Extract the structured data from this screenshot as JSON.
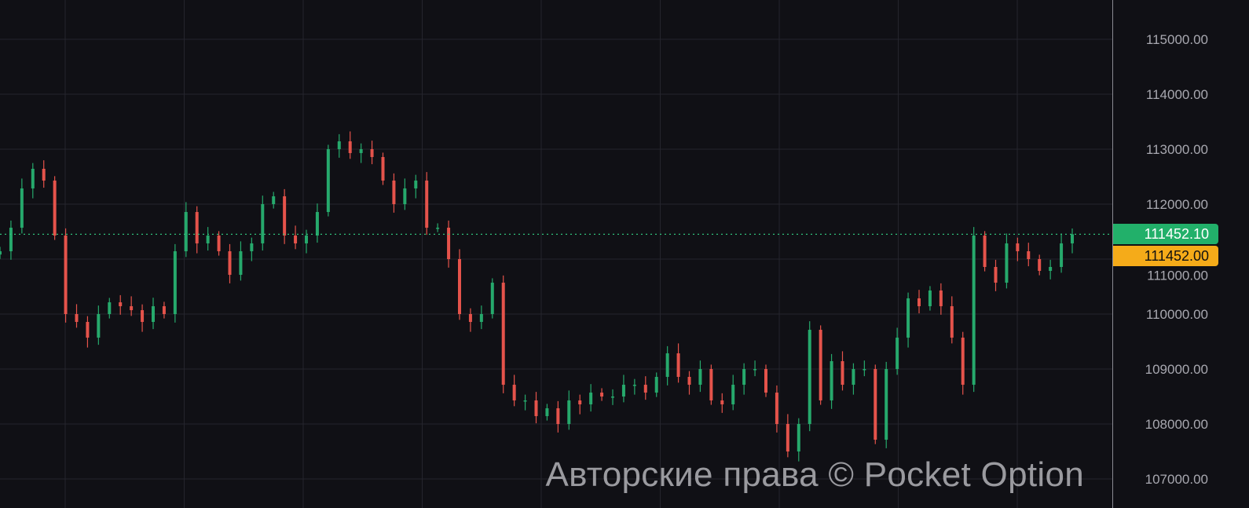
{
  "chart_data": {
    "type": "candlestick",
    "title": "",
    "xlabel": "",
    "ylabel": "",
    "ylim": [
      106500,
      115700
    ],
    "y_ticks": [
      107000,
      108000,
      109000,
      110000,
      111000,
      112000,
      113000,
      114000,
      115000
    ],
    "y_tick_labels": [
      "107000.00",
      "108000.00",
      "109000.00",
      "110000.00",
      "111000.00",
      "112000.00",
      "113000.00",
      "114000.00",
      "115000.00"
    ],
    "grid": true,
    "close": [
      111143,
      111571,
      112286,
      112643,
      112429,
      111429,
      110000,
      109857,
      109571,
      110000,
      110214,
      110143,
      110071,
      109857,
      110143,
      110000,
      111143,
      111857,
      111286,
      111429,
      111143,
      110714,
      111143,
      111286,
      112000,
      112143,
      111429,
      111286,
      111429,
      111857,
      113000,
      113143,
      112929,
      113000,
      112857,
      112429,
      112000,
      112286,
      112429,
      111571,
      111571,
      111000,
      110000,
      109857,
      110000,
      110571,
      108714,
      108429,
      108429,
      108143,
      108286,
      108000,
      108429,
      108357,
      108571,
      108500,
      108500,
      108714,
      108714,
      108571,
      108857,
      109286,
      108857,
      108714,
      109000,
      108429,
      108357,
      108714,
      109000,
      109000,
      108571,
      108000,
      107500,
      108000,
      109714,
      108429,
      109143,
      108714,
      109000,
      109000,
      107714,
      109000,
      109571,
      110286,
      110143,
      110429,
      110143,
      109571,
      108714,
      111429,
      110857,
      110571,
      111286,
      111143,
      111000,
      110786,
      110857,
      111286,
      111452
    ],
    "current_price": 111452.1,
    "current_price_label": "111452.10",
    "second_price_label": "111452.00",
    "colors": {
      "up": "#26a96c",
      "down": "#e5534b",
      "background": "#101015",
      "grid": "#25252d",
      "current_badge": "#22b06a",
      "second_badge": "#f5ab19"
    }
  },
  "watermark": "Авторские права © Pocket Option"
}
